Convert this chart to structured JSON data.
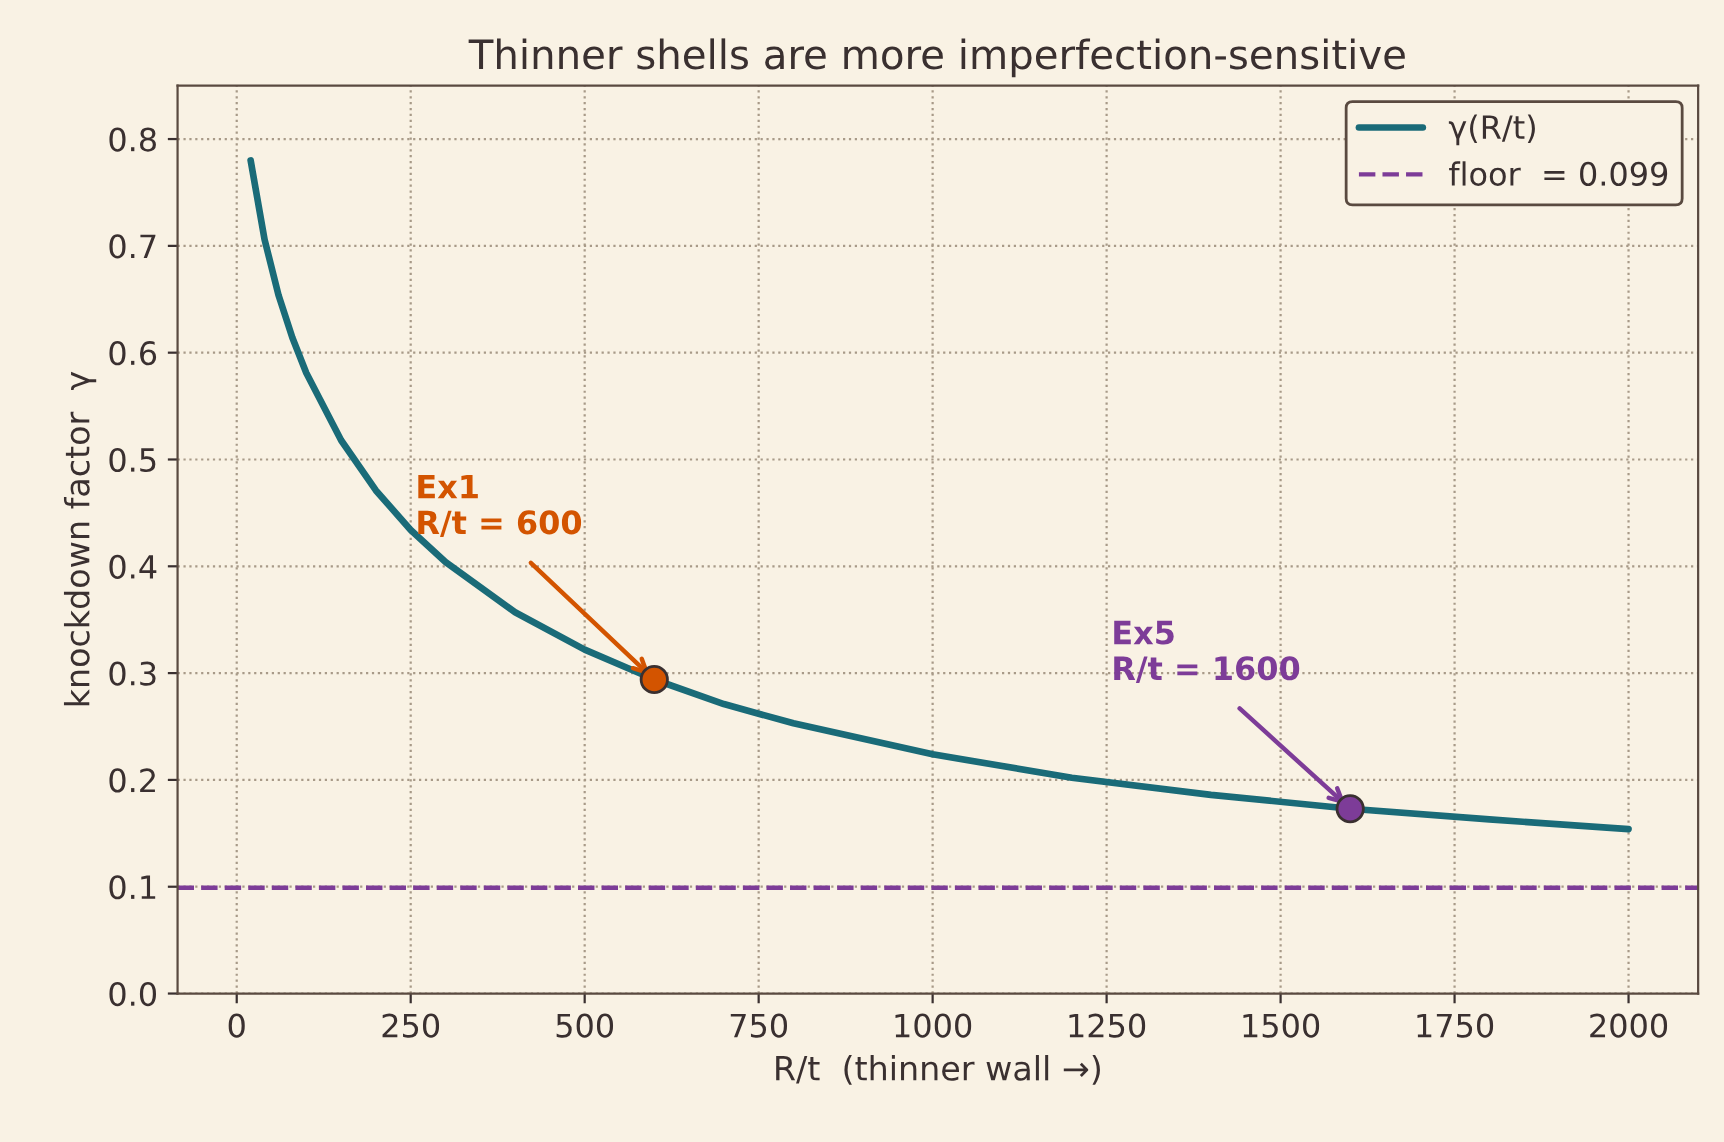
{
  "chart_data": {
    "type": "line",
    "title": "Thinner shells are more imperfection-sensitive",
    "xlabel": "R/t  (thinner wall →)",
    "ylabel": "knockdown factor  γ",
    "series": [
      {
        "name": "γ(R/t)",
        "color": "#1a6b78",
        "x": [
          20,
          40,
          60,
          80,
          100,
          150,
          200,
          250,
          300,
          400,
          500,
          600,
          700,
          800,
          1000,
          1200,
          1400,
          1600,
          1800,
          2000
        ],
        "values": [
          0.78,
          0.706,
          0.654,
          0.614,
          0.581,
          0.518,
          0.471,
          0.434,
          0.404,
          0.357,
          0.322,
          0.294,
          0.271,
          0.253,
          0.224,
          0.202,
          0.186,
          0.173,
          0.163,
          0.154
        ]
      },
      {
        "type": "scatter",
        "color": "#d35400",
        "x": [
          600
        ],
        "values": [
          0.294
        ],
        "marker": "circle"
      },
      {
        "type": "scatter",
        "color": "#7d3c98",
        "x": [
          1600
        ],
        "values": [
          0.173
        ],
        "marker": "circle"
      }
    ],
    "ref_lines": [
      {
        "axis": "y",
        "value": 0.099,
        "label": "floor  = 0.099",
        "color": "#7d3c98",
        "line_style": "dashed"
      }
    ],
    "annotations": [
      {
        "text": "Ex1\nR/t = 600",
        "x": 600,
        "y": 0.294
      },
      {
        "text": "Ex5\nR/t = 1600",
        "x": 1600,
        "y": 0.173
      }
    ],
    "xlim": [
      -85,
      2100
    ],
    "ylim": [
      0,
      0.85
    ],
    "xticks": [
      0,
      250,
      500,
      750,
      1000,
      1250,
      1500,
      1750,
      2000
    ],
    "yticks": [
      {
        "value": 0,
        "label": "0.0"
      },
      0.1,
      0.2,
      0.3,
      0.4,
      0.5,
      0.6,
      0.7,
      0.8
    ],
    "grid": true,
    "legend": "top right"
  }
}
